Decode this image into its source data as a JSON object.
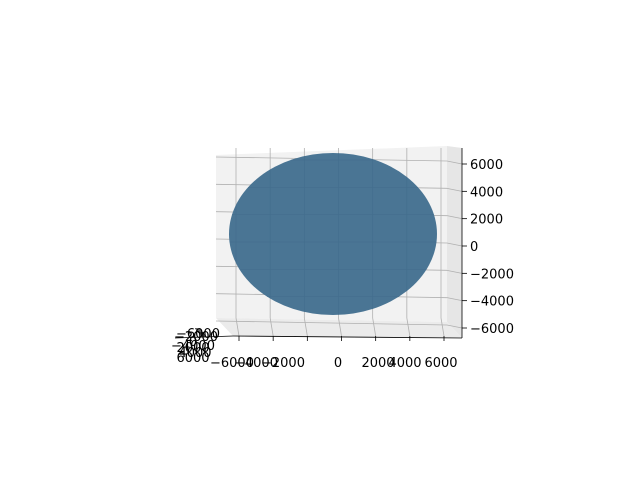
{
  "chart_data": {
    "type": "surface3d",
    "title": "",
    "shape": "sphere",
    "surface_color": "#4a7594",
    "grid": true,
    "axes": {
      "x": {
        "ticks": [
          -6000,
          -4000,
          -2000,
          0,
          2000,
          4000,
          6000
        ],
        "tick_labels": [
          "−6000",
          "−4000",
          "−2000",
          "0",
          "2000",
          "4000",
          "6000"
        ]
      },
      "y": {
        "ticks": [
          -6000,
          -4000,
          -2000,
          0,
          2000,
          4000,
          6000
        ],
        "tick_labels": [
          "−6000",
          "−4000",
          "−2000",
          "0",
          "2000",
          "4000",
          "6000"
        ]
      },
      "z": {
        "ticks": [
          -6000,
          -4000,
          -2000,
          0,
          2000,
          4000,
          6000
        ],
        "tick_labels": [
          "−6000",
          "−4000",
          "−2000",
          "0",
          "2000",
          "4000",
          "6000"
        ]
      }
    }
  }
}
